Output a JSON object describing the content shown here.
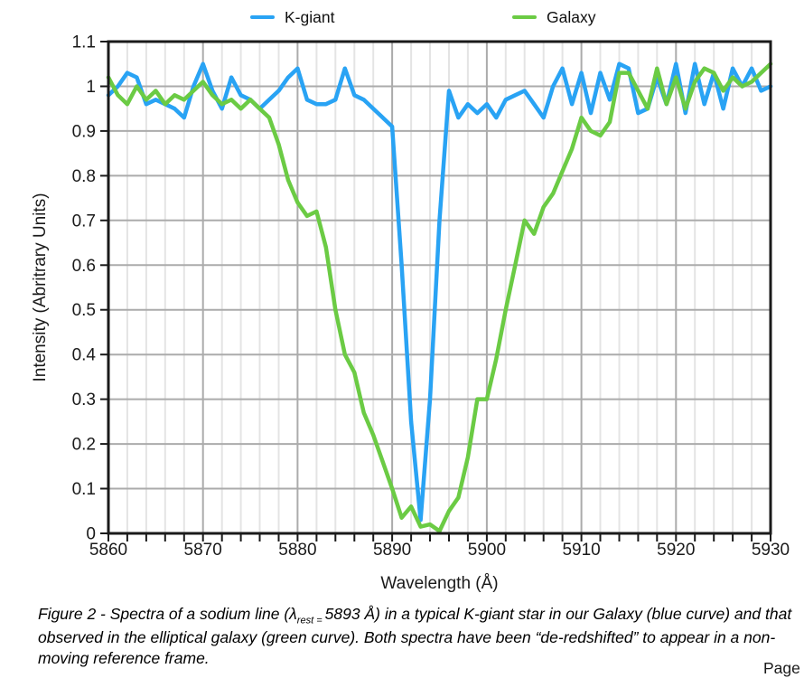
{
  "legend": [
    {
      "label": "K-giant",
      "color": "#29a3f4"
    },
    {
      "label": "Galaxy",
      "color": "#6bcb44"
    }
  ],
  "caption": {
    "part1": "Figure 2 - Spectra of a sodium line (λ",
    "lambda_sub": "rest = ",
    "part2": "5893 Å) in a typical K-giant star in our Galaxy (blue curve) and that observed in the elliptical galaxy (green curve).  Both spectra have been “de-redshifted” to appear in a non-moving reference frame."
  },
  "page": {
    "footer_partial": "Page"
  },
  "chart_data": {
    "type": "line",
    "title": "",
    "xlabel": "Wavelength (Å)",
    "ylabel": "Intensity (Abritrary Units)",
    "xlim": [
      5860,
      5930
    ],
    "ylim": [
      0,
      1.1
    ],
    "x_major_ticks": [
      5860,
      5870,
      5880,
      5890,
      5900,
      5910,
      5920,
      5930
    ],
    "x_minor_step": 2,
    "x_step": 1,
    "y_tick_values": [
      0,
      0.1,
      0.2,
      0.3,
      0.4,
      0.5,
      0.6,
      0.7,
      0.8,
      0.9,
      1.0,
      1.1
    ],
    "y_tick_labels": [
      "0",
      "0.1",
      "0.2",
      "0.3",
      "0.4",
      "0.5",
      "0.6",
      "0.7",
      "0.8",
      "0.9",
      "1",
      "1.1"
    ],
    "grid": true,
    "legend_position": "top",
    "grid_minor_color": "#e4e4e4",
    "grid_major_color": "#ababab",
    "axis_color": "#1a1a1a",
    "series": [
      {
        "name": "K-giant",
        "color": "#29a3f4",
        "x_start": 5860,
        "values": [
          0.98,
          1.0,
          1.03,
          1.02,
          0.96,
          0.97,
          0.96,
          0.95,
          0.93,
          1.0,
          1.05,
          0.99,
          0.95,
          1.02,
          0.98,
          0.97,
          0.95,
          0.97,
          0.99,
          1.02,
          1.04,
          0.97,
          0.96,
          0.96,
          0.97,
          1.04,
          0.98,
          0.97,
          0.95,
          0.93,
          0.91,
          0.6,
          0.25,
          0.03,
          0.3,
          0.7,
          0.99,
          0.93,
          0.96,
          0.94,
          0.96,
          0.93,
          0.97,
          0.98,
          0.99,
          0.96,
          0.93,
          1.0,
          1.04,
          0.96,
          1.03,
          0.94,
          1.03,
          0.97,
          1.05,
          1.04,
          0.94,
          0.95,
          1.02,
          0.96,
          1.05,
          0.94,
          1.05,
          0.96,
          1.03,
          0.95,
          1.04,
          1.0,
          1.04,
          0.99,
          1.0
        ]
      },
      {
        "name": "Galaxy",
        "color": "#6bcb44",
        "x_start": 5860,
        "values": [
          1.02,
          0.98,
          0.96,
          1.0,
          0.97,
          0.99,
          0.96,
          0.98,
          0.97,
          0.99,
          1.01,
          0.98,
          0.96,
          0.97,
          0.95,
          0.97,
          0.95,
          0.93,
          0.87,
          0.79,
          0.74,
          0.71,
          0.72,
          0.64,
          0.5,
          0.4,
          0.36,
          0.27,
          0.22,
          0.16,
          0.1,
          0.035,
          0.06,
          0.015,
          0.02,
          0.005,
          0.05,
          0.08,
          0.17,
          0.3,
          0.3,
          0.39,
          0.5,
          0.6,
          0.7,
          0.67,
          0.73,
          0.76,
          0.81,
          0.86,
          0.93,
          0.9,
          0.89,
          0.92,
          1.03,
          1.03,
          0.99,
          0.95,
          1.04,
          0.96,
          1.02,
          0.95,
          1.01,
          1.04,
          1.03,
          0.99,
          1.02,
          1.0,
          1.01,
          1.03,
          1.05
        ]
      }
    ]
  }
}
